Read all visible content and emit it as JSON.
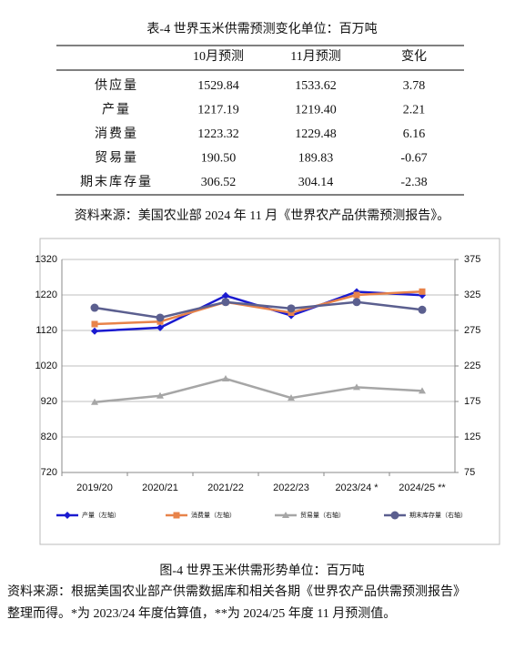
{
  "table": {
    "title": "表-4 世界玉米供需预测变化单位：百万吨",
    "columns": [
      "10月预测",
      "11月预测",
      "变化"
    ],
    "rows": [
      {
        "label": "供应量",
        "cells": [
          "1529.84",
          "1533.62",
          "3.78"
        ]
      },
      {
        "label": "产量",
        "cells": [
          "1217.19",
          "1219.40",
          "2.21"
        ]
      },
      {
        "label": "消费量",
        "cells": [
          "1223.32",
          "1229.48",
          "6.16"
        ]
      },
      {
        "label": "贸易量",
        "cells": [
          "190.50",
          "189.83",
          "-0.67"
        ]
      },
      {
        "label": "期末库存量",
        "cells": [
          "306.52",
          "304.14",
          "-2.38"
        ]
      }
    ],
    "source": "资料来源：美国农业部 2024 年 11 月《世界农产品供需预测报告》。"
  },
  "chart_data": {
    "type": "line",
    "categories": [
      "2019/20",
      "2020/21",
      "2021/22",
      "2022/23",
      "2023/24 *",
      "2024/25 **"
    ],
    "ylim": [
      720,
      1320
    ],
    "yticks": [
      720,
      820,
      920,
      1020,
      1120,
      1220,
      1320
    ],
    "y2lim": [
      75,
      375
    ],
    "y2ticks": [
      75,
      125,
      175,
      225,
      275,
      325,
      375
    ],
    "grid": true,
    "legend": "bottom",
    "series": [
      {
        "name": "产量（左轴）",
        "color": "#1a1ad0",
        "marker": "diamond",
        "values": [
          1118,
          1128,
          1218,
          1162,
          1229,
          1219.4
        ]
      },
      {
        "name": "消费量（左轴）",
        "color": "#e8834a",
        "marker": "square",
        "values": [
          1138,
          1145,
          1200,
          1170,
          1220,
          1229.48
        ]
      },
      {
        "name": "贸易量（右轴）",
        "color": "#a6a6a6",
        "marker": "triangle",
        "axis": "y2",
        "values": [
          174,
          183,
          207,
          180,
          195,
          189.83
        ]
      },
      {
        "name": "期末库存量（右轴）",
        "color": "#5b5f8f",
        "marker": "circle",
        "axis": "y2",
        "values": [
          307,
          293,
          315,
          306,
          315,
          304.14
        ]
      }
    ]
  },
  "caption": "图-4 世界玉米供需形势单位：百万吨",
  "note": [
    "资料来源：根据美国农业部产供需数据库和相关各期《世界农产品供需预测报告》",
    "整理而得。*为 2023/24 年度估算值，**为 2024/25 年度 11 月预测值。"
  ]
}
